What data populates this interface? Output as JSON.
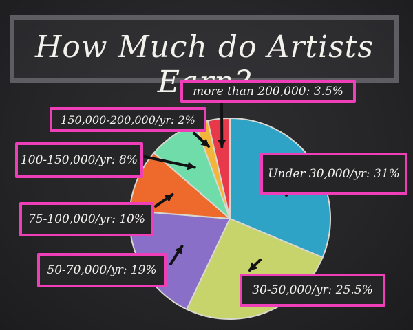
{
  "chart_data": {
    "type": "pie",
    "title": "How Much do Artists Earn?",
    "slices": [
      {
        "label": "Under 30,000/yr: 31%",
        "value": 31,
        "color": "#2fa3c6"
      },
      {
        "label": "30-50,000/yr: 25.5%",
        "value": 25.5,
        "color": "#c7d36b"
      },
      {
        "label": "50-70,000/yr: 19%",
        "value": 19,
        "color": "#8a6fc9"
      },
      {
        "label": "75-100,000/yr: 10%",
        "value": 10,
        "color": "#ee6a2c"
      },
      {
        "label": "100-150,000/yr: 8%",
        "value": 8,
        "color": "#6fdcaa"
      },
      {
        "label": "150,000-200,000/yr: 2%",
        "value": 2,
        "color": "#f2b53a"
      },
      {
        "label": "more than 200,000: 3.5%",
        "value": 3.5,
        "color": "#e8394a"
      }
    ]
  }
}
